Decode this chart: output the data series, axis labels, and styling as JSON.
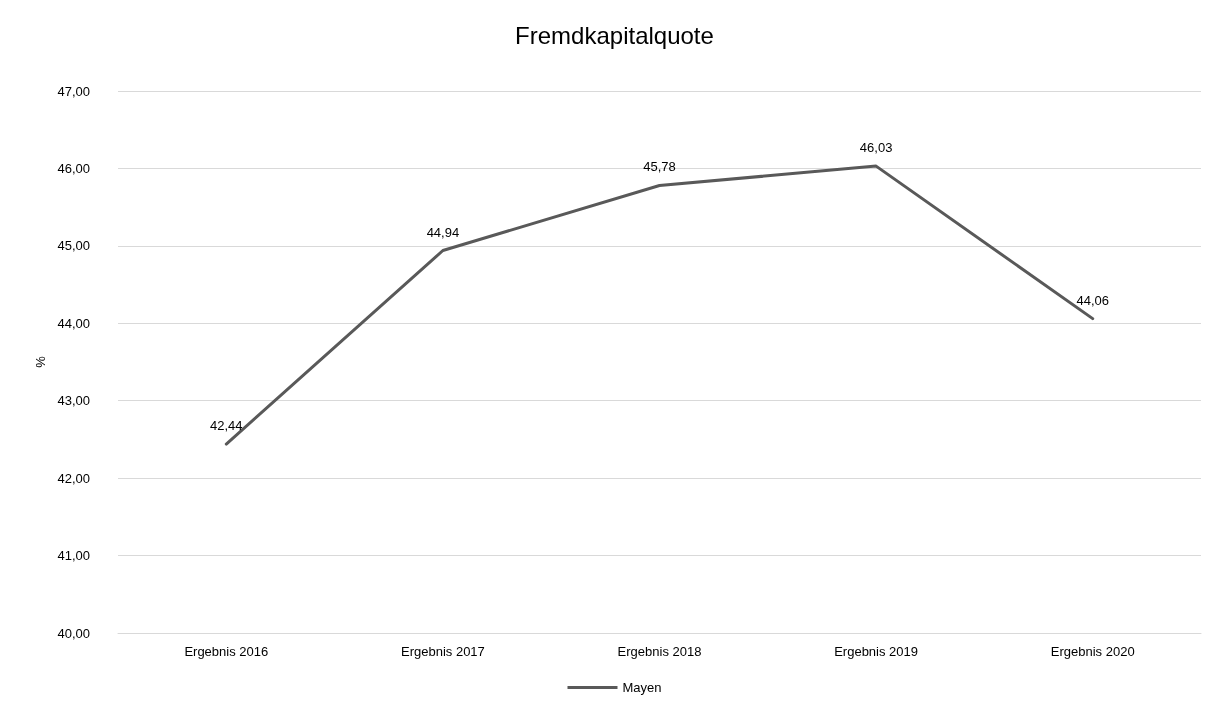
{
  "chart_data": {
    "type": "line",
    "title": "Fremdkapitalquote",
    "ylabel": "%",
    "categories": [
      "Ergebnis 2016",
      "Ergebnis 2017",
      "Ergebnis 2018",
      "Ergebnis 2019",
      "Ergebnis 2020"
    ],
    "series": [
      {
        "name": "Mayen",
        "color": "#595959",
        "values": [
          42.44,
          44.94,
          45.78,
          46.03,
          44.06
        ],
        "value_labels": [
          "42,44",
          "44,94",
          "45,78",
          "46,03",
          "44,06"
        ]
      }
    ],
    "ylim": [
      40,
      47
    ],
    "yticks": [
      {
        "value": 40,
        "label": "40,00"
      },
      {
        "value": 41,
        "label": "41,00"
      },
      {
        "value": 42,
        "label": "42,00"
      },
      {
        "value": 43,
        "label": "43,00"
      },
      {
        "value": 44,
        "label": "44,00"
      },
      {
        "value": 45,
        "label": "45,00"
      },
      {
        "value": 46,
        "label": "46,00"
      },
      {
        "value": 47,
        "label": "47,00"
      }
    ],
    "grid": "y",
    "legend": "bottom",
    "marker": "none",
    "line_style": "solid"
  }
}
